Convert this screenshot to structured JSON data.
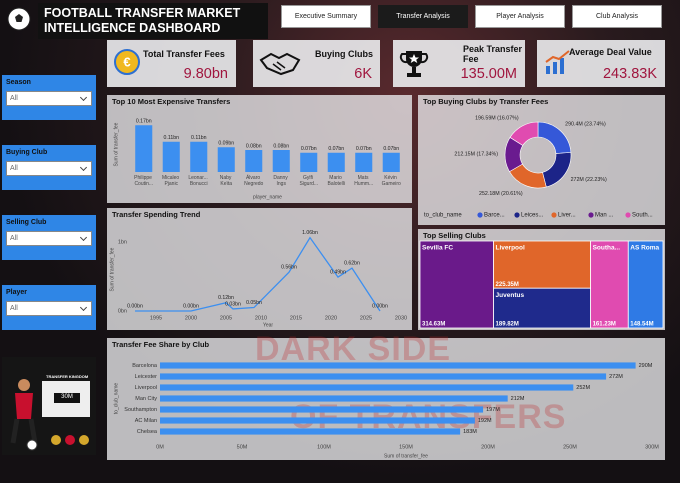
{
  "header": {
    "title": "FOOTBALL TRANSFER MARKET INTELLIGENCE DASHBOARD",
    "tabs": [
      "Executive Summary",
      "Transfer Analysis",
      "Player Analysis",
      "Club Analysis"
    ]
  },
  "kpis": [
    {
      "label": "Total Transfer Fees",
      "value": "9.80bn"
    },
    {
      "label": "Buying Clubs",
      "value": "6K"
    },
    {
      "label": "Peak Transfer Fee",
      "value": "135.00M"
    },
    {
      "label": "Average Deal Value",
      "value": "243.83K"
    }
  ],
  "slicers": [
    {
      "label": "Season",
      "value": "All"
    },
    {
      "label": "Buying Club",
      "value": "All"
    },
    {
      "label": "Selling Club",
      "value": "All"
    },
    {
      "label": "Player",
      "value": "All"
    }
  ],
  "promo": {
    "title": "TRANSFER KINGDOM",
    "amount": "30M"
  },
  "watermark": [
    "DARK SIDE",
    "OF TRANSFERS"
  ],
  "chart_data": [
    {
      "type": "bar",
      "title": "Top 10 Most Expensive Transfers",
      "x_label": "player_name",
      "y_label": "Sum of transfer_fee",
      "categories": [
        "Philippe Coutin...",
        "Micaleo Pjanic",
        "Leonar... Bonucci",
        "Naby Keïta",
        "Álvaro Negredo",
        "Danny Ings",
        "Gylfi Sigurd...",
        "Mario Balotelli",
        "Mats Humm...",
        "Kévin Gameiro"
      ],
      "values": [
        0.17,
        0.11,
        0.11,
        0.09,
        0.08,
        0.08,
        0.07,
        0.07,
        0.07,
        0.07
      ],
      "value_labels": [
        "0.17bn",
        "0.11bn",
        "0.11bn",
        "0.09bn",
        "0.08bn",
        "0.08bn",
        "0.07bn",
        "0.07bn",
        "0.07bn",
        "0.07bn"
      ],
      "color": "#3c8ff0",
      "ylim": [
        0,
        0.2
      ]
    },
    {
      "type": "line",
      "title": "Transfer Spending Trend",
      "x_label": "Year",
      "y_label": "Sum of transfer_fee",
      "x": [
        1992,
        2000,
        2005,
        2006,
        2009,
        2014,
        2017,
        2021,
        2023,
        2027
      ],
      "values": [
        0,
        0,
        0.12,
        0.03,
        0.05,
        0.56,
        1.06,
        0.49,
        0.62,
        0
      ],
      "value_labels": [
        "0.00bn",
        "0.00bn",
        "0.12bn",
        "0.03bn",
        "0.05bn",
        "0.56bn",
        "1.06bn",
        "0.49bn",
        "0.62bn",
        "0.00bn"
      ],
      "color": "#3c8ff0",
      "xlim": [
        1991,
        2031
      ],
      "xticks": [
        1995,
        2000,
        2005,
        2010,
        2015,
        2020,
        2025,
        2030
      ],
      "ylim": [
        0,
        1.2
      ],
      "yticks": [
        {
          "value": 0,
          "label": "0bn"
        },
        {
          "value": 1,
          "label": "1bn"
        }
      ]
    },
    {
      "type": "pie",
      "title": "Top Buying Clubs by Transfer Fees",
      "legend_title": "to_club_name",
      "categories": [
        "Barce...",
        "Leices...",
        "Liver...",
        "Man ...",
        "South..."
      ],
      "values": [
        290.4,
        272,
        252.18,
        212.15,
        196.59
      ],
      "value_labels": [
        "290.4M (23.74%)",
        "272M (22.23%)",
        "252.18M (20.61%)",
        "212.15M (17.34%)",
        "196.59M (16.07%)"
      ],
      "colors": [
        "#3558d8",
        "#1c2488",
        "#e0662a",
        "#6a1b8f",
        "#e04bb0"
      ]
    },
    {
      "type": "treemap",
      "title": "Top Selling Clubs",
      "categories": [
        "Sevilla FC",
        "Liverpool",
        "Juventus",
        "Southa...",
        "AS Roma"
      ],
      "values": [
        314.63,
        225.35,
        189.82,
        161.23,
        148.54
      ],
      "value_labels": [
        "314.63M",
        "225.35M",
        "189.82M",
        "161.23M",
        "148.54M"
      ],
      "colors": [
        "#6a1a8a",
        "#e0662a",
        "#1f2a8c",
        "#e04bb0",
        "#2f7ae5"
      ]
    },
    {
      "type": "bar",
      "orientation": "horizontal",
      "title": "Transfer Fee Share by Club",
      "x_label": "Sum of transfer_fee",
      "y_label": "to_club_name",
      "categories": [
        "Barcelona",
        "Leicester",
        "Liverpool",
        "Man City",
        "Southampton",
        "AC Milan",
        "Chelsea"
      ],
      "values": [
        290,
        272,
        252,
        212,
        197,
        192,
        183
      ],
      "value_labels": [
        "290M",
        "272M",
        "252M",
        "212M",
        "197M",
        "192M",
        "183M"
      ],
      "color": "#3c8ff0",
      "xlim": [
        0,
        300
      ],
      "xticks": [
        {
          "value": 0,
          "label": "0M"
        },
        {
          "value": 50,
          "label": "50M"
        },
        {
          "value": 100,
          "label": "100M"
        },
        {
          "value": 150,
          "label": "150M"
        },
        {
          "value": 200,
          "label": "200M"
        },
        {
          "value": 250,
          "label": "250M"
        },
        {
          "value": 300,
          "label": "300M"
        }
      ]
    }
  ]
}
